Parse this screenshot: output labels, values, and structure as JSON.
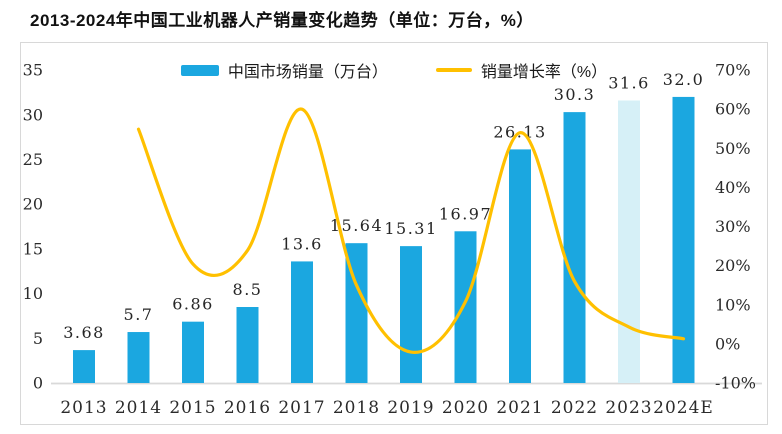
{
  "page": {
    "title": "2013-2024年中国工业机器人产销量变化趋势（单位：万台，%）"
  },
  "chart_data": {
    "type": "bar+line combo",
    "title": "2013-2024年中国工业机器人产销量变化趋势（单位：万台，%）",
    "categories": [
      "2013",
      "2014",
      "2015",
      "2016",
      "2017",
      "2018",
      "2019",
      "2020",
      "2021",
      "2022",
      "2023",
      "2024E"
    ],
    "series": [
      {
        "name": "中国市场销量（万台）",
        "type": "bar",
        "axis": "left",
        "values": [
          3.68,
          5.7,
          6.86,
          8.5,
          13.6,
          15.64,
          15.31,
          16.97,
          26.13,
          30.3,
          31.6,
          32.0
        ],
        "labels": [
          "3.68",
          "5.7",
          "6.86",
          "8.5",
          "13.6",
          "15.64",
          "15.31",
          "16.97",
          "26.13",
          "30.3",
          "31.6",
          "32.0"
        ],
        "color": "#1BA7E0",
        "highlight": {
          "index": 10,
          "color": "#D6F0F7"
        }
      },
      {
        "name": "销量增长率（%）",
        "type": "line",
        "axis": "right",
        "smooth": true,
        "start_index": 1,
        "values": [
          54.9,
          20.4,
          23.9,
          60.0,
          15.0,
          -2.1,
          10.8,
          54.0,
          16.0,
          4.3,
          1.3
        ],
        "color": "#FFC000"
      }
    ],
    "left_axis": {
      "min": 0,
      "max": 35,
      "step": 5,
      "ticks": [
        "0",
        "5",
        "10",
        "15",
        "20",
        "25",
        "30",
        "35"
      ]
    },
    "right_axis": {
      "min": -10,
      "max": 70,
      "step": 10,
      "ticks": [
        "-10%",
        "0%",
        "10%",
        "20%",
        "30%",
        "40%",
        "50%",
        "60%",
        "70%"
      ]
    },
    "legend_position": "top",
    "grid": false,
    "colors": {
      "bar": "#1BA7E0",
      "bar_highlight": "#D6F0F7",
      "line": "#FFC000",
      "axis_line": "#D9D9D9",
      "text": "#2b2b2b"
    }
  }
}
